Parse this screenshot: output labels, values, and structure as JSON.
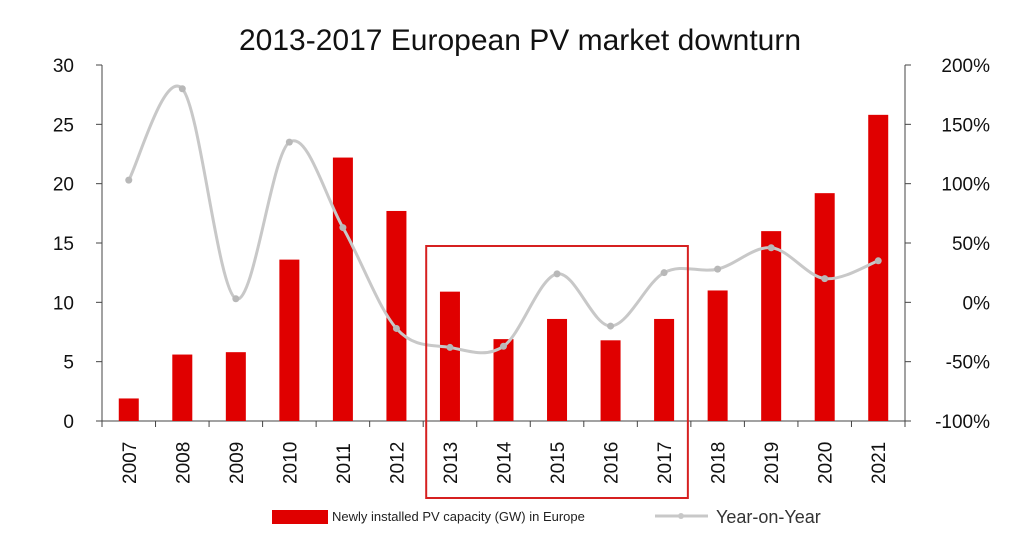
{
  "chart_data": {
    "type": "bar",
    "title": "2013-2017 European PV market downturn",
    "categories": [
      "2007",
      "2008",
      "2009",
      "2010",
      "2011",
      "2012",
      "2013",
      "2014",
      "2015",
      "2016",
      "2017",
      "2018",
      "2019",
      "2020",
      "2021"
    ],
    "series": [
      {
        "name": "Newly installed PV capacity (GW) in Europe",
        "type": "bar",
        "axis": "left",
        "color": "#e00000",
        "values": [
          1.9,
          5.6,
          5.8,
          13.6,
          22.2,
          17.7,
          10.9,
          6.9,
          8.6,
          6.8,
          8.6,
          11.0,
          16.0,
          19.2,
          25.8
        ]
      },
      {
        "name": "Year-on-Year",
        "type": "line",
        "axis": "right",
        "color": "#c8c8c8",
        "smooth": true,
        "values": [
          103,
          180,
          3,
          135,
          63,
          -22,
          -38,
          -37,
          24,
          -20,
          25,
          28,
          46,
          20,
          35
        ]
      }
    ],
    "y_left": {
      "min": 0,
      "max": 30,
      "ticks": [
        0,
        5,
        10,
        15,
        20,
        25,
        30
      ],
      "tick_labels": [
        "0",
        "5",
        "10",
        "15",
        "20",
        "25",
        "30"
      ]
    },
    "y_right": {
      "min": -100,
      "max": 200,
      "ticks": [
        -100,
        -50,
        0,
        50,
        100,
        150,
        200
      ],
      "tick_labels": [
        "-100%",
        "-50%",
        "0%",
        "50%",
        "100%",
        "150%",
        "200%"
      ]
    },
    "highlight": {
      "from": "2013",
      "to": "2017",
      "color": "#d62020"
    },
    "grid": false,
    "legend_position": "bottom"
  }
}
